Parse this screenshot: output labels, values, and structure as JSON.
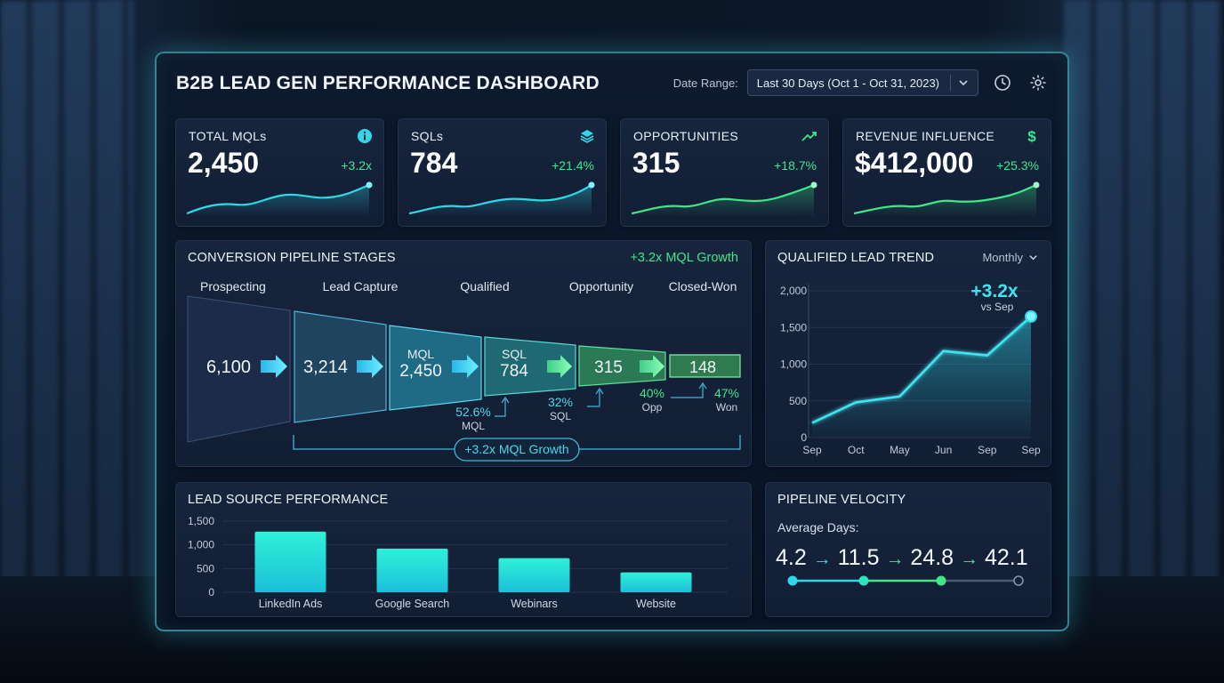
{
  "header": {
    "title": "B2B LEAD GEN PERFORMANCE DASHBOARD",
    "date_range_label": "Date Range:",
    "date_range_value": "Last 30 Days (Oct 1 - Oct 31, 2023)",
    "icons": [
      "history-icon",
      "settings-icon"
    ]
  },
  "kpis": [
    {
      "label": "TOTAL MQLs",
      "value": "2,450",
      "delta": "+3.2x",
      "icon": "info-icon",
      "accent": "#2fd8e8"
    },
    {
      "label": "SQLs",
      "value": "784",
      "delta": "+21.4%",
      "icon": "layers-icon",
      "accent": "#2fd8e8"
    },
    {
      "label": "OPPORTUNITIES",
      "value": "315",
      "delta": "+18.7%",
      "icon": "trending-up-icon",
      "accent": "#3ee88a"
    },
    {
      "label": "REVENUE INFLUENCE",
      "value": "$412,000",
      "delta": "+25.3%",
      "icon": "dollar-icon",
      "accent": "#3ee88a"
    }
  ],
  "pipeline": {
    "title": "CONVERSION PIPELINE STAGES",
    "badge": "+3.2x MQL Growth",
    "stages": [
      "Prospecting",
      "Lead Capture",
      "Qualified",
      "Opportunity",
      "Closed-Won"
    ],
    "values": {
      "prospecting": "6,100",
      "lead_capture": "3,214",
      "mql_label": "MQL",
      "mql_value": "2,450",
      "sql_label": "SQL",
      "sql_value": "784",
      "opportunity": "315",
      "won": "148"
    },
    "rates": [
      {
        "pct": "52.6%",
        "label": "MQL"
      },
      {
        "pct": "32%",
        "label": "SQL"
      },
      {
        "pct": "40%",
        "label": "Opp"
      },
      {
        "pct": "47%",
        "label": "Won"
      }
    ],
    "footer_badge": "+3.2x MQL Growth"
  },
  "trend": {
    "title": "QUALIFIED LEAD TREND",
    "period": "Monthly",
    "callout_value": "+3.2x",
    "callout_sub": "vs Sep"
  },
  "lead_source": {
    "title": "LEAD SOURCE PERFORMANCE"
  },
  "velocity": {
    "title": "PIPELINE VELOCITY",
    "subtitle": "Average Days:",
    "steps": [
      "4.2",
      "11.5",
      "24.8",
      "42.1"
    ],
    "arrow": "→"
  },
  "chart_data": [
    {
      "type": "line",
      "title": "QUALIFIED LEAD TREND",
      "x": [
        "Sep",
        "Oct",
        "May",
        "Jun",
        "Sep",
        "Sep"
      ],
      "series": [
        {
          "values": [
            200,
            480,
            560,
            1180,
            1120,
            1650
          ]
        }
      ],
      "ylim": [
        0,
        2000
      ],
      "yticks": [
        0,
        500,
        1000,
        1500,
        2000
      ],
      "ytick_labels": [
        "0",
        "500",
        "1,000",
        "1,500",
        "2,000"
      ],
      "grid": true
    },
    {
      "type": "bar",
      "title": "LEAD SOURCE PERFORMANCE",
      "categories": [
        "LinkedIn Ads",
        "Google Search",
        "Webinars",
        "Website"
      ],
      "values": [
        1280,
        920,
        720,
        420
      ],
      "ylim": [
        0,
        1500
      ],
      "yticks": [
        0,
        500,
        1000,
        1500
      ],
      "ytick_labels": [
        "0",
        "500",
        "1,000",
        "1,500"
      ],
      "grid": true
    }
  ]
}
